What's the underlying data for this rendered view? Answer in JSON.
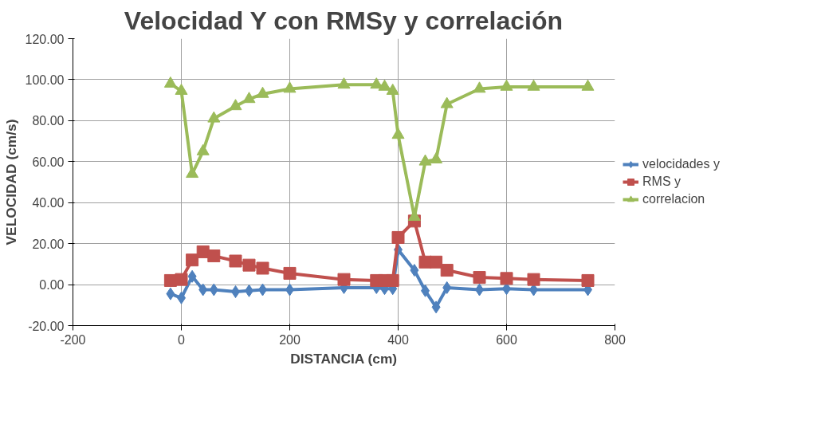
{
  "chart_data": {
    "type": "line",
    "title": "Velocidad Y con RMSy y correlación",
    "xlabel": "DISTANCIA (cm)",
    "ylabel": "VELOCIDAD (cm/s)",
    "x": [
      -20,
      0,
      20,
      40,
      60,
      100,
      125,
      150,
      200,
      300,
      360,
      375,
      390,
      400,
      430,
      450,
      470,
      490,
      550,
      600,
      650,
      750
    ],
    "series": [
      {
        "name": "velocidades y",
        "color": "#4f81bd",
        "marker": "diamond",
        "values": [
          -4.5,
          -6.5,
          4,
          -2.5,
          -2.5,
          -3.5,
          -3,
          -2.5,
          -2.5,
          -1.5,
          -1.5,
          -2,
          -2,
          17,
          7,
          -3,
          -11,
          -1.5,
          -2.5,
          -2,
          -2.5,
          -2.5
        ]
      },
      {
        "name": "RMS y",
        "color": "#c0504d",
        "marker": "square",
        "values": [
          2,
          2.5,
          12,
          16,
          14,
          11.5,
          9.5,
          8,
          5.5,
          2.5,
          2,
          2,
          2,
          23,
          31,
          11,
          11,
          7,
          3.5,
          3,
          2.5,
          2
        ]
      },
      {
        "name": "correlacion",
        "color": "#9bbb59",
        "marker": "triangle",
        "values": [
          98,
          94.5,
          54,
          65,
          81,
          87,
          90.5,
          93,
          95.5,
          97.5,
          97.5,
          96.5,
          94.5,
          73,
          33,
          60,
          61,
          88,
          95.5,
          96.5,
          96.5,
          96.5
        ]
      }
    ],
    "xlim": [
      -200,
      800
    ],
    "xticks": [
      -200,
      0,
      200,
      400,
      600,
      800
    ],
    "ylim": [
      -20,
      120
    ],
    "yticks": [
      {
        "value": -20,
        "label": "-20.00"
      },
      {
        "value": 0,
        "label": "0.00"
      },
      {
        "value": 20,
        "label": "20.00"
      },
      {
        "value": 40,
        "label": "40.00"
      },
      {
        "value": 60,
        "label": "60.00"
      },
      {
        "value": 80,
        "label": "80.00"
      },
      {
        "value": 100,
        "label": "100.00"
      },
      {
        "value": 120,
        "label": "120.00"
      }
    ],
    "grid": true,
    "legend": "right"
  }
}
